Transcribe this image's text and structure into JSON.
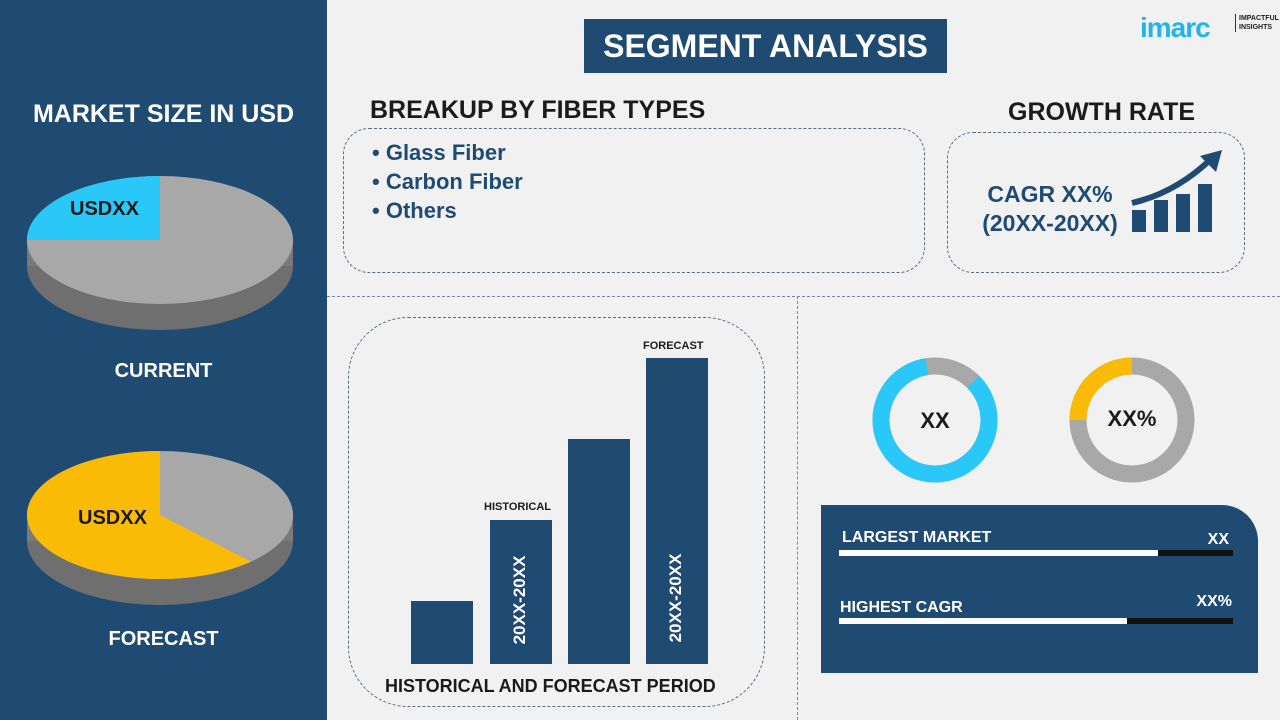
{
  "left_panel": {
    "title": "MARKET SIZE IN USD",
    "current": {
      "label": "CURRENT",
      "value": "USDXX",
      "share": 0.25
    },
    "forecast": {
      "label": "FORECAST",
      "value": "USDXX",
      "share": 0.62
    }
  },
  "header": {
    "title": "SEGMENT ANALYSIS",
    "logo": "imarc IMPACTFUL INSIGHTS"
  },
  "breakup": {
    "title": "BREAKUP BY FIBER TYPES",
    "items": [
      "Glass Fiber",
      "Carbon Fiber",
      "Others"
    ]
  },
  "growth": {
    "title": "GROWTH RATE",
    "cagr": "CAGR XX%",
    "period": "(20XX-20XX)"
  },
  "bars": {
    "caption": "HISTORICAL AND FORECAST PERIOD",
    "historical_label": "HISTORICAL",
    "forecast_label": "FORECAST",
    "historical_period": "20XX-20XX",
    "forecast_period": "20XX-20XX"
  },
  "donuts": [
    {
      "value": "XX",
      "share": 0.85,
      "color": "#29c8f8"
    },
    {
      "value": "XX%",
      "share": 0.25,
      "color": "#f9bb06"
    }
  ],
  "kpis": [
    {
      "label": "LARGEST MARKET",
      "value": "XX",
      "level": 0.81
    },
    {
      "label": "HIGHEST CAGR",
      "value": "XX%",
      "level": 0.73
    }
  ],
  "colors": {
    "navy": "#1f4b73",
    "cyan": "#29c8f8",
    "gold": "#f9bb06",
    "grey": "#a8a8a8"
  }
}
